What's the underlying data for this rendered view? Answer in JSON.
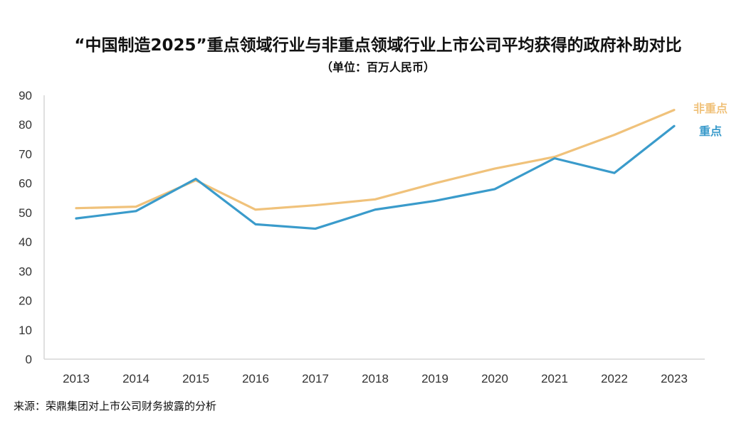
{
  "title": "“中国制造2025”重点领域行业与非重点领域行业上市公司平均获得的政府补助对比",
  "subtitle": "（单位：百万人民币）",
  "source": "来源：荣鼎集团对上市公司财务披露的分析",
  "chart_data": {
    "type": "line",
    "title": "“中国制造2025”重点领域行业与非重点领域行业上市公司平均获得的政府补助对比",
    "subtitle": "（单位：百万人民币）",
    "x": [
      "2013",
      "2014",
      "2015",
      "2016",
      "2017",
      "2018",
      "2019",
      "2020",
      "2021",
      "2022",
      "2023"
    ],
    "ylim": [
      0,
      90
    ],
    "yticks": [
      "0",
      "10",
      "20",
      "30",
      "40",
      "50",
      "60",
      "70",
      "80",
      "90"
    ],
    "grid": false,
    "legend": "right end of lines",
    "series": [
      {
        "name": "非重点",
        "color": "#F0C27B",
        "values": [
          51.5,
          52,
          61,
          51,
          52.5,
          54.5,
          60,
          65,
          69,
          76.5,
          85
        ]
      },
      {
        "name": "重点",
        "color": "#3A9BCB",
        "values": [
          48,
          50.5,
          61.5,
          46,
          44.5,
          51,
          54,
          58,
          68.5,
          63.5,
          79.5
        ]
      }
    ]
  }
}
